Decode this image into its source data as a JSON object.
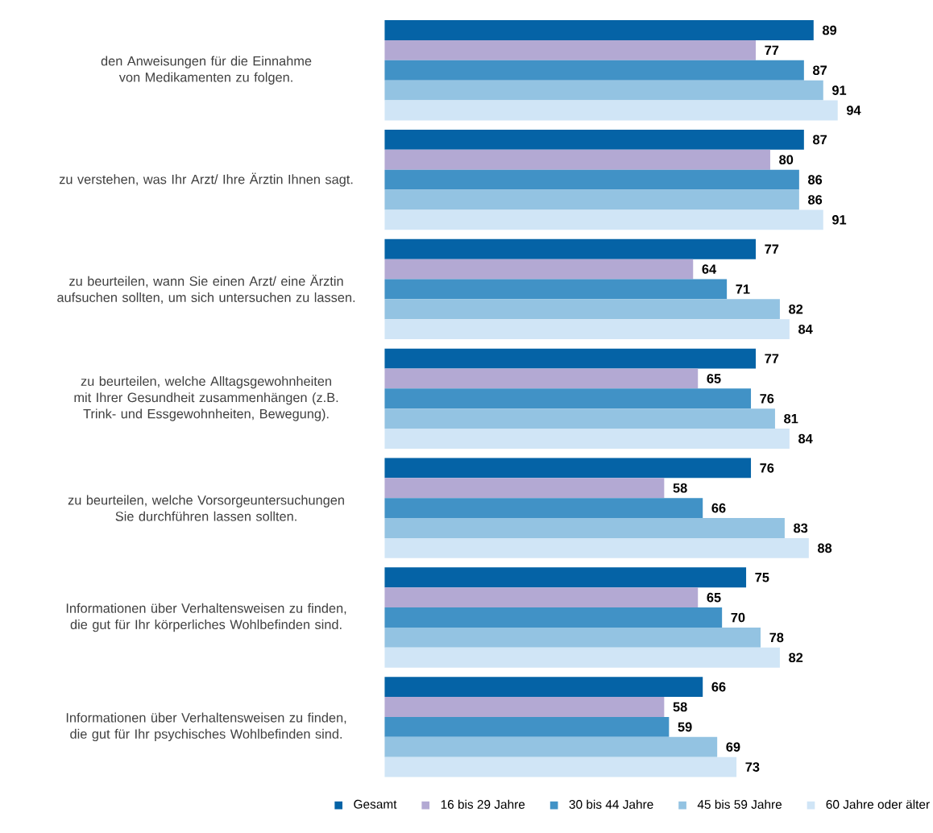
{
  "chart_data": {
    "type": "bar",
    "orientation": "horizontal",
    "data_labels": true,
    "legend": "bottom",
    "categories": [
      "den Anweisungen für die Einnahme von Medikamenten zu folgen.",
      "zu verstehen, was Ihr Arzt/ Ihre Ärztin Ihnen sagt.",
      "zu beurteilen, wann Sie einen Arzt/ eine Ärztin aufsuchen sollten, um sich untersuchen zu lassen.",
      "zu beurteilen, welche Alltagsgewohnheiten mit Ihrer Gesundheit zusammenhängen (z.B. Trink- und Essgewohnheiten, Bewegung).",
      "zu beurteilen, welche Vorsorgeuntersuchungen Sie durchführen lassen sollten.",
      "Informationen über Verhaltensweisen zu finden, die gut für Ihr körperliches Wohlbefinden sind.",
      "Informationen über Verhaltensweisen zu finden, die gut für Ihr psychisches Wohlbefinden sind."
    ],
    "series": [
      {
        "name": "Gesamt",
        "color": "#0563a6",
        "values": [
          89,
          87,
          77,
          77,
          76,
          75,
          66
        ]
      },
      {
        "name": "16 bis 29 Jahre",
        "color": "#b3a9d3",
        "values": [
          77,
          80,
          64,
          65,
          58,
          65,
          58
        ]
      },
      {
        "name": "30 bis 44 Jahre",
        "color": "#4192c6",
        "values": [
          87,
          86,
          71,
          76,
          66,
          70,
          59
        ]
      },
      {
        "name": "45 bis 59 Jahre",
        "color": "#93c3e2",
        "values": [
          91,
          86,
          82,
          81,
          83,
          78,
          69
        ]
      },
      {
        "name": "60 Jahre oder älter",
        "color": "#d0e5f6",
        "values": [
          94,
          91,
          84,
          84,
          88,
          82,
          73
        ]
      }
    ]
  }
}
